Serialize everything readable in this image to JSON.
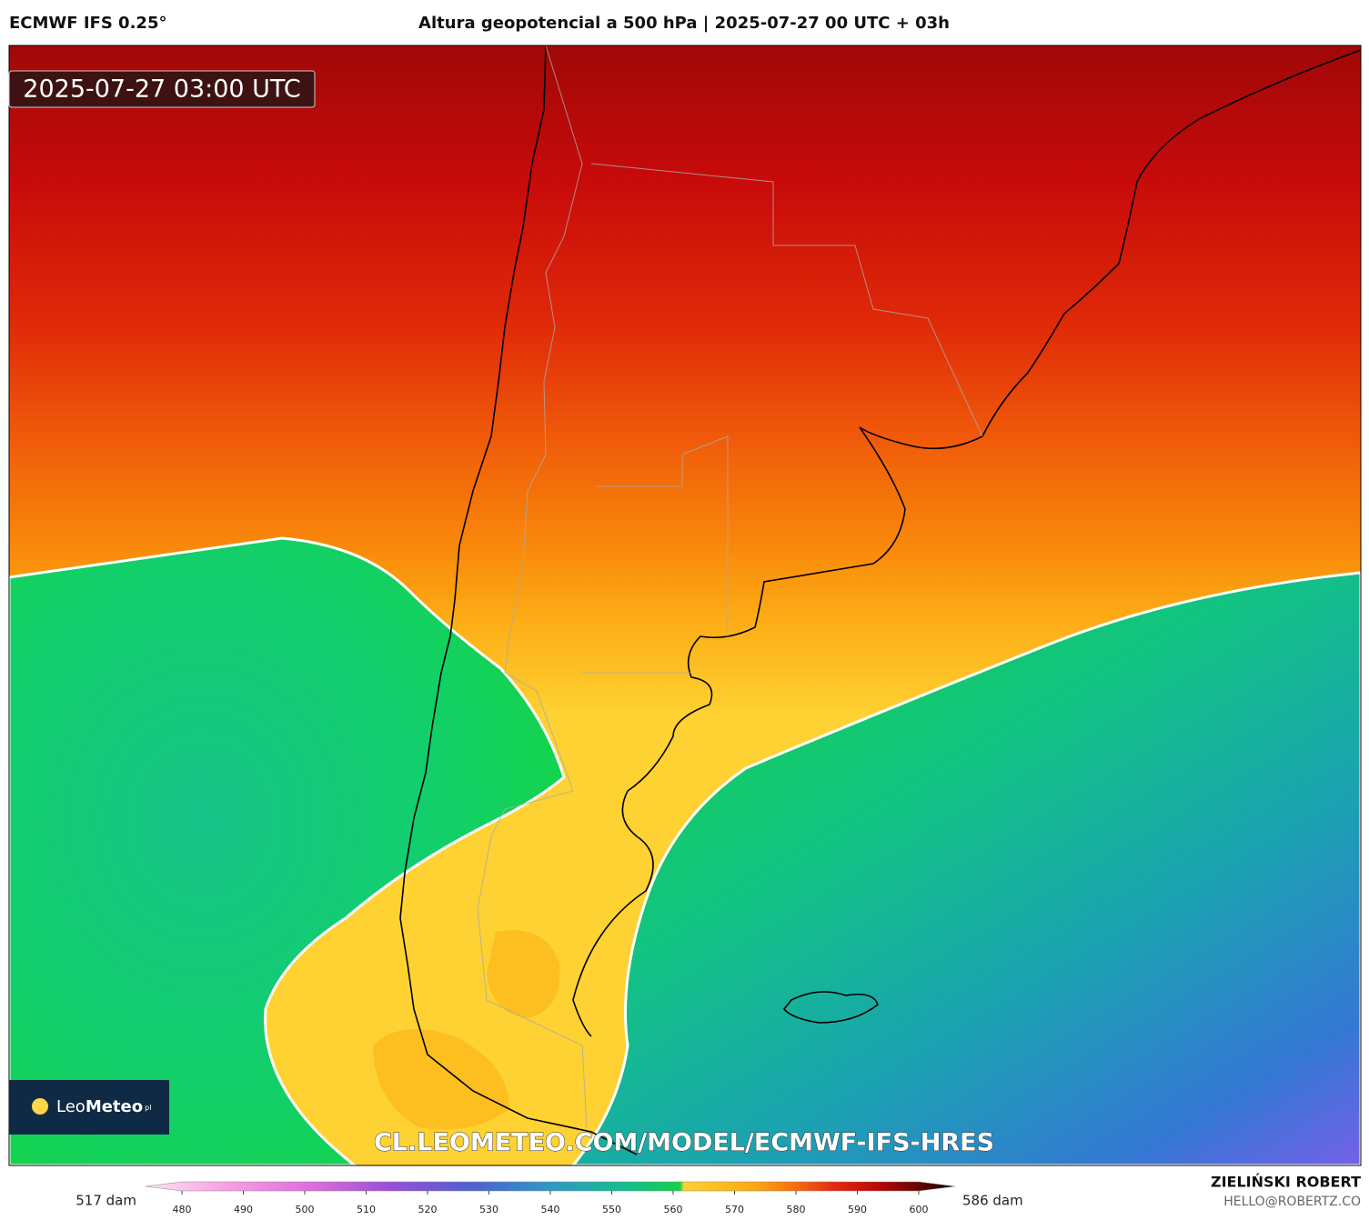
{
  "header": {
    "model": "ECMWF IFS 0.25°",
    "title": "Altura geopotencial a 500 hPa | 2025-07-27 00 UTC + 03h"
  },
  "map": {
    "timestamp": "2025-07-27 03:00 UTC",
    "watermark": "CL.LEOMETEO.COM/MODEL/ECMWF-IFS-HRES",
    "logo": {
      "light": "Leo",
      "bold": "Meteo",
      "suffix": "pl"
    }
  },
  "colorbar": {
    "min_label": "517 dam",
    "max_label": "586 dam",
    "ticks": [
      480,
      490,
      500,
      510,
      520,
      530,
      540,
      550,
      560,
      570,
      580,
      590,
      600
    ]
  },
  "credit": {
    "author": "ZIELIŃSKI ROBERT",
    "email": "HELLO@ROBERTZ.CO"
  }
}
